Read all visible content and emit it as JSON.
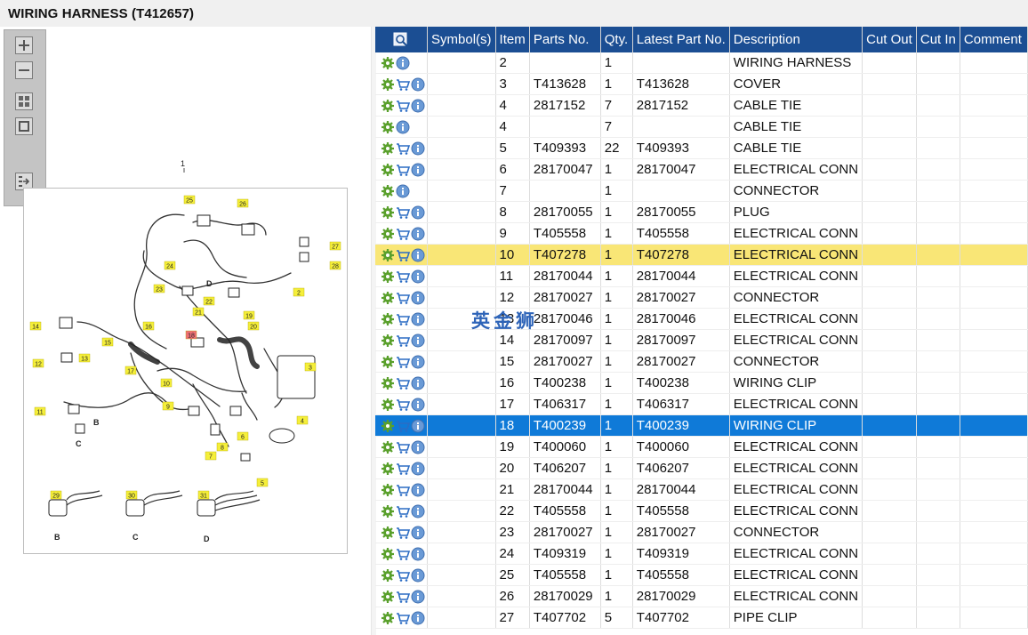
{
  "window": {
    "title": "WIRING HARNESS (T412657)"
  },
  "toolbar": {
    "buttons": [
      {
        "name": "zoom-in-button",
        "icon": "plus-icon"
      },
      {
        "name": "zoom-out-button",
        "icon": "minus-icon"
      },
      {
        "name": "fit-all-button",
        "icon": "grid-icon"
      },
      {
        "name": "fit-window-button",
        "icon": "square-icon"
      },
      {
        "name": "export-button",
        "icon": "export-arrow-icon"
      }
    ]
  },
  "diagram": {
    "top_label": "1",
    "callouts": [
      {
        "n": "25",
        "hl": false
      },
      {
        "n": "26",
        "hl": false
      },
      {
        "n": "27",
        "hl": false
      },
      {
        "n": "28",
        "hl": false
      },
      {
        "n": "24",
        "hl": false
      },
      {
        "n": "23",
        "hl": false
      },
      {
        "n": "2",
        "hl": false
      },
      {
        "n": "22",
        "hl": false
      },
      {
        "n": "21",
        "hl": false
      },
      {
        "n": "19",
        "hl": false
      },
      {
        "n": "20",
        "hl": false
      },
      {
        "n": "14",
        "hl": false
      },
      {
        "n": "16",
        "hl": false
      },
      {
        "n": "15",
        "hl": false
      },
      {
        "n": "18",
        "hl": true
      },
      {
        "n": "13",
        "hl": false
      },
      {
        "n": "12",
        "hl": false
      },
      {
        "n": "17",
        "hl": false
      },
      {
        "n": "3",
        "hl": false
      },
      {
        "n": "10",
        "hl": false
      },
      {
        "n": "9",
        "hl": false
      },
      {
        "n": "11",
        "hl": false
      },
      {
        "n": "7",
        "hl": false
      },
      {
        "n": "6",
        "hl": false
      },
      {
        "n": "4",
        "hl": false
      },
      {
        "n": "8",
        "hl": false
      },
      {
        "n": "5",
        "hl": false
      },
      {
        "n": "29",
        "hl": false
      },
      {
        "n": "30",
        "hl": false
      },
      {
        "n": "31",
        "hl": false
      }
    ],
    "letters": [
      "D",
      "B",
      "C",
      "B",
      "C",
      "D"
    ]
  },
  "table": {
    "columns": [
      "Symbol(s)",
      "Item",
      "Parts No.",
      "Qty.",
      "Latest Part No.",
      "Description",
      "Cut Out",
      "Cut In",
      "Comment"
    ],
    "colors": {
      "header_bg": "#1b4e93",
      "highlight_yellow": "#f9e676",
      "highlight_blue": "#0f7ad8"
    },
    "rows": [
      {
        "cart": false,
        "item": "2",
        "part": "",
        "qty": "1",
        "latest": "",
        "desc": "WIRING HARNESS",
        "cut_out": "",
        "cut_in": "",
        "comment": "",
        "hl": ""
      },
      {
        "cart": true,
        "item": "3",
        "part": "T413628",
        "qty": "1",
        "latest": "T413628",
        "desc": "COVER",
        "cut_out": "",
        "cut_in": "",
        "comment": "",
        "hl": ""
      },
      {
        "cart": true,
        "item": "4",
        "part": "2817152",
        "qty": "7",
        "latest": "2817152",
        "desc": "CABLE TIE",
        "cut_out": "",
        "cut_in": "",
        "comment": "",
        "hl": ""
      },
      {
        "cart": false,
        "item": "4",
        "part": "",
        "qty": "7",
        "latest": "",
        "desc": "CABLE TIE",
        "cut_out": "",
        "cut_in": "",
        "comment": "",
        "hl": ""
      },
      {
        "cart": true,
        "item": "5",
        "part": "T409393",
        "qty": "22",
        "latest": "T409393",
        "desc": "CABLE TIE",
        "cut_out": "",
        "cut_in": "",
        "comment": "",
        "hl": ""
      },
      {
        "cart": true,
        "item": "6",
        "part": "28170047",
        "qty": "1",
        "latest": "28170047",
        "desc": "ELECTRICAL CONN",
        "cut_out": "",
        "cut_in": "",
        "comment": "",
        "hl": ""
      },
      {
        "cart": false,
        "item": "7",
        "part": "",
        "qty": "1",
        "latest": "",
        "desc": "CONNECTOR",
        "cut_out": "",
        "cut_in": "",
        "comment": "",
        "hl": ""
      },
      {
        "cart": true,
        "item": "8",
        "part": "28170055",
        "qty": "1",
        "latest": "28170055",
        "desc": "PLUG",
        "cut_out": "",
        "cut_in": "",
        "comment": "",
        "hl": ""
      },
      {
        "cart": true,
        "item": "9",
        "part": "T405558",
        "qty": "1",
        "latest": "T405558",
        "desc": "ELECTRICAL CONN",
        "cut_out": "",
        "cut_in": "",
        "comment": "",
        "hl": ""
      },
      {
        "cart": true,
        "item": "10",
        "part": "T407278",
        "qty": "1",
        "latest": "T407278",
        "desc": "ELECTRICAL CONN",
        "cut_out": "",
        "cut_in": "",
        "comment": "",
        "hl": "yellow"
      },
      {
        "cart": true,
        "item": "11",
        "part": "28170044",
        "qty": "1",
        "latest": "28170044",
        "desc": "ELECTRICAL CONN",
        "cut_out": "",
        "cut_in": "",
        "comment": "",
        "hl": ""
      },
      {
        "cart": true,
        "item": "12",
        "part": "28170027",
        "qty": "1",
        "latest": "28170027",
        "desc": "CONNECTOR",
        "cut_out": "",
        "cut_in": "",
        "comment": "",
        "hl": ""
      },
      {
        "cart": true,
        "item": "13",
        "part": "28170046",
        "qty": "1",
        "latest": "28170046",
        "desc": "ELECTRICAL CONN",
        "cut_out": "",
        "cut_in": "",
        "comment": "",
        "hl": ""
      },
      {
        "cart": true,
        "item": "14",
        "part": "28170097",
        "qty": "1",
        "latest": "28170097",
        "desc": "ELECTRICAL CONN",
        "cut_out": "",
        "cut_in": "",
        "comment": "",
        "hl": ""
      },
      {
        "cart": true,
        "item": "15",
        "part": "28170027",
        "qty": "1",
        "latest": "28170027",
        "desc": "CONNECTOR",
        "cut_out": "",
        "cut_in": "",
        "comment": "",
        "hl": ""
      },
      {
        "cart": true,
        "item": "16",
        "part": "T400238",
        "qty": "1",
        "latest": "T400238",
        "desc": "WIRING CLIP",
        "cut_out": "",
        "cut_in": "",
        "comment": "",
        "hl": ""
      },
      {
        "cart": true,
        "item": "17",
        "part": "T406317",
        "qty": "1",
        "latest": "T406317",
        "desc": "ELECTRICAL CONN",
        "cut_out": "",
        "cut_in": "",
        "comment": "",
        "hl": ""
      },
      {
        "cart": true,
        "item": "18",
        "part": "T400239",
        "qty": "1",
        "latest": "T400239",
        "desc": "WIRING CLIP",
        "cut_out": "",
        "cut_in": "",
        "comment": "",
        "hl": "blue"
      },
      {
        "cart": true,
        "item": "19",
        "part": "T400060",
        "qty": "1",
        "latest": "T400060",
        "desc": "ELECTRICAL CONN",
        "cut_out": "",
        "cut_in": "",
        "comment": "",
        "hl": ""
      },
      {
        "cart": true,
        "item": "20",
        "part": "T406207",
        "qty": "1",
        "latest": "T406207",
        "desc": "ELECTRICAL CONN",
        "cut_out": "",
        "cut_in": "",
        "comment": "",
        "hl": ""
      },
      {
        "cart": true,
        "item": "21",
        "part": "28170044",
        "qty": "1",
        "latest": "28170044",
        "desc": "ELECTRICAL CONN",
        "cut_out": "",
        "cut_in": "",
        "comment": "",
        "hl": ""
      },
      {
        "cart": true,
        "item": "22",
        "part": "T405558",
        "qty": "1",
        "latest": "T405558",
        "desc": "ELECTRICAL CONN",
        "cut_out": "",
        "cut_in": "",
        "comment": "",
        "hl": ""
      },
      {
        "cart": true,
        "item": "23",
        "part": "28170027",
        "qty": "1",
        "latest": "28170027",
        "desc": "CONNECTOR",
        "cut_out": "",
        "cut_in": "",
        "comment": "",
        "hl": ""
      },
      {
        "cart": true,
        "item": "24",
        "part": "T409319",
        "qty": "1",
        "latest": "T409319",
        "desc": "ELECTRICAL CONN",
        "cut_out": "",
        "cut_in": "",
        "comment": "",
        "hl": ""
      },
      {
        "cart": true,
        "item": "25",
        "part": "T405558",
        "qty": "1",
        "latest": "T405558",
        "desc": "ELECTRICAL CONN",
        "cut_out": "",
        "cut_in": "",
        "comment": "",
        "hl": ""
      },
      {
        "cart": true,
        "item": "26",
        "part": "28170029",
        "qty": "1",
        "latest": "28170029",
        "desc": "ELECTRICAL CONN",
        "cut_out": "",
        "cut_in": "",
        "comment": "",
        "hl": ""
      },
      {
        "cart": true,
        "item": "27",
        "part": "T407702",
        "qty": "5",
        "latest": "T407702",
        "desc": "PIPE CLIP",
        "cut_out": "",
        "cut_in": "",
        "comment": "",
        "hl": ""
      }
    ]
  },
  "watermark": "英金狮"
}
